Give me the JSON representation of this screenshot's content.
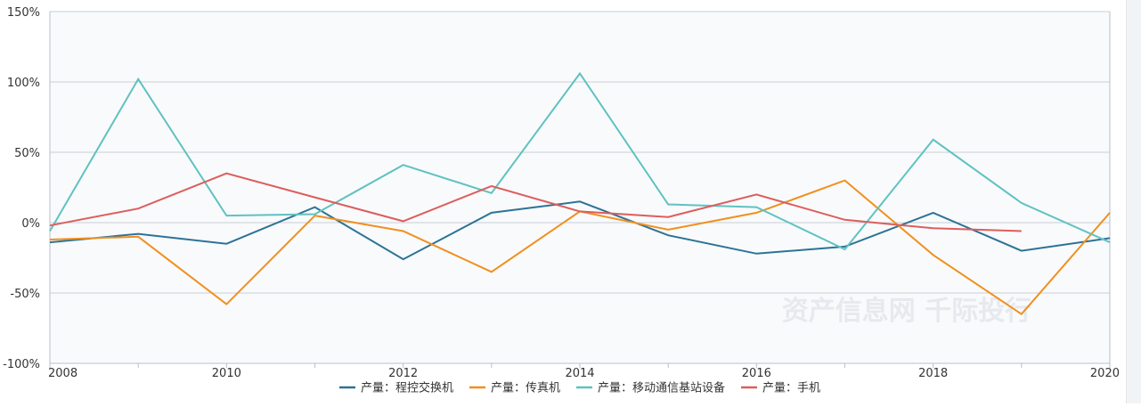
{
  "watermark": "资产信息网 千际投行",
  "colors": {
    "background": "#f9fafc",
    "grid": "#c9ced6",
    "axis": "#b9c0ca",
    "text": "#333333"
  },
  "chart_data": {
    "type": "line",
    "title": "",
    "xlabel": "",
    "ylabel": "",
    "x": [
      2008,
      2009,
      2010,
      2011,
      2012,
      2013,
      2014,
      2015,
      2016,
      2017,
      2018,
      2019,
      2020
    ],
    "x_ticks": [
      "2008",
      "2010",
      "2012",
      "2014",
      "2016",
      "2018",
      "2020"
    ],
    "y_ticks": [
      {
        "value": 150,
        "label": "150%"
      },
      {
        "value": 100,
        "label": "100%"
      },
      {
        "value": 50,
        "label": "50%"
      },
      {
        "value": 0,
        "label": "0%"
      },
      {
        "value": -50,
        "label": "-50%"
      },
      {
        "value": -100,
        "label": "-100%"
      }
    ],
    "ylim": [
      -100,
      150
    ],
    "y_unit": "%",
    "grid": true,
    "legend_position": "bottom",
    "series": [
      {
        "name": "产量：程控交换机",
        "color": "#2c7396",
        "values": [
          -14,
          -8,
          -15,
          11,
          -26,
          7,
          15,
          -9,
          -22,
          -17,
          7,
          -20,
          -11
        ]
      },
      {
        "name": "产量：传真机",
        "color": "#f0901e",
        "values": [
          -12,
          -10,
          -58,
          5,
          -6,
          -35,
          8,
          -5,
          7,
          30,
          -23,
          -65,
          7
        ]
      },
      {
        "name": "产量：移动通信基站设备",
        "color": "#5fc2c0",
        "values": [
          -6,
          102,
          5,
          6,
          41,
          21,
          106,
          13,
          11,
          -19,
          59,
          14,
          -14
        ]
      },
      {
        "name": "产量：手机",
        "color": "#dc5e5c",
        "values": [
          -2,
          10,
          35,
          18,
          1,
          26,
          8,
          4,
          20,
          2,
          -4,
          -6,
          null
        ]
      }
    ]
  }
}
